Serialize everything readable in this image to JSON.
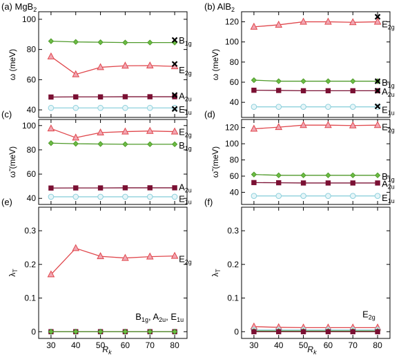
{
  "figure": {
    "x_label": "R",
    "x_label_sub": "k"
  },
  "chart_data": [
    {
      "panel_label": "(a) MgB",
      "panel_label_sub": "2",
      "type": "line",
      "x": [
        30,
        40,
        50,
        60,
        70,
        80
      ],
      "ylim": [
        35,
        105
      ],
      "yticks": [
        40,
        60,
        80,
        100
      ],
      "ylabel": "ω (meV)",
      "series": [
        {
          "name": "B1g",
          "color": "#4f9a2a",
          "fill": "#6cbd45",
          "marker": "diamond",
          "values": [
            85.5,
            85.0,
            84.8,
            84.6,
            84.6,
            84.6
          ],
          "ref": 86.3
        },
        {
          "name": "E2g",
          "color": "#e0474c",
          "fill": "#f1a6b3",
          "marker": "triangle",
          "values": [
            75.3,
            63.5,
            68.2,
            69.2,
            69.3,
            68.8
          ],
          "ref": 70.4
        },
        {
          "name": "A2u",
          "color": "#7a1033",
          "fill": "#7a1033",
          "marker": "square",
          "values": [
            48.5,
            48.6,
            48.6,
            48.7,
            48.7,
            48.7
          ],
          "ref": 49.8
        },
        {
          "name": "E1u",
          "color": "#8ed0dc",
          "fill": "#e6f5f8",
          "marker": "circle",
          "values": [
            41.3,
            41.3,
            41.3,
            41.3,
            41.3,
            41.3
          ],
          "ref": 40.6
        }
      ],
      "labels": [
        {
          "main": "B",
          "sub": "1g",
          "y": 86.3
        },
        {
          "main": "E",
          "sub": "2g",
          "y": 66.5
        },
        {
          "main": "A",
          "sub": "2u",
          "y": 49.3
        },
        {
          "main": "E",
          "sub": "1u",
          "y": 40.5
        }
      ]
    },
    {
      "panel_label": "(b) AlB",
      "panel_label_sub": "2",
      "type": "line",
      "x": [
        30,
        40,
        50,
        60,
        70,
        80
      ],
      "ylim": [
        25,
        130
      ],
      "yticks": [
        40,
        60,
        80,
        100,
        120
      ],
      "ylabel": "ω (meV)",
      "series": [
        {
          "name": "E2g",
          "color": "#e0474c",
          "fill": "#f1a6b3",
          "marker": "triangle",
          "values": [
            115.0,
            117.0,
            120.0,
            120.0,
            119.5,
            120.0
          ],
          "ref": 125.0
        },
        {
          "name": "B1g",
          "color": "#4f9a2a",
          "fill": "#6cbd45",
          "marker": "diamond",
          "values": [
            62.0,
            61.0,
            61.0,
            61.0,
            61.0,
            61.0
          ],
          "ref": 61.0
        },
        {
          "name": "A2u",
          "color": "#7a1033",
          "fill": "#7a1033",
          "marker": "square",
          "values": [
            52.0,
            51.8,
            51.5,
            51.5,
            51.5,
            51.5
          ],
          "ref": 51.5
        },
        {
          "name": "E1u",
          "color": "#8ed0dc",
          "fill": "#e6f5f8",
          "marker": "circle",
          "values": [
            35.5,
            35.5,
            35.5,
            35.5,
            35.5,
            35.5
          ],
          "ref": 36.0
        }
      ],
      "labels": [
        {
          "main": "E",
          "sub": "2g",
          "y": 118.0
        },
        {
          "main": "B",
          "sub": "1g",
          "y": 60.0
        },
        {
          "main": "A",
          "sub": "2u",
          "y": 51.0
        },
        {
          "main": "E",
          "sub": "1u",
          "y": 33.0
        }
      ]
    },
    {
      "panel_label": "(c)",
      "type": "line",
      "x": [
        30,
        40,
        50,
        60,
        70,
        80
      ],
      "ylim": [
        35,
        105
      ],
      "yticks": [
        40,
        60,
        80,
        100
      ],
      "ylabel": "ω̃ (meV)",
      "series": [
        {
          "name": "E2g",
          "color": "#e0474c",
          "fill": "#f1a6b3",
          "marker": "triangle",
          "values": [
            97.5,
            90.0,
            94.2,
            95.0,
            95.5,
            95.0
          ]
        },
        {
          "name": "B1g",
          "color": "#4f9a2a",
          "fill": "#6cbd45",
          "marker": "diamond",
          "values": [
            85.5,
            85.0,
            84.8,
            84.6,
            84.6,
            84.6
          ]
        },
        {
          "name": "A2u",
          "color": "#7a1033",
          "fill": "#7a1033",
          "marker": "square",
          "values": [
            48.5,
            48.6,
            48.6,
            48.7,
            48.7,
            48.7
          ]
        },
        {
          "name": "E1u",
          "color": "#8ed0dc",
          "fill": "#e6f5f8",
          "marker": "circle",
          "values": [
            41.3,
            41.3,
            41.3,
            41.3,
            41.3,
            41.3
          ]
        }
      ],
      "labels": [
        {
          "main": "E",
          "sub": "2g",
          "y": 95.0
        },
        {
          "main": "B",
          "sub": "1g",
          "y": 84.0
        },
        {
          "main": "A",
          "sub": "2u",
          "y": 49.5
        },
        {
          "main": "E",
          "sub": "1u",
          "y": 39.8
        }
      ]
    },
    {
      "panel_label": "(d)",
      "type": "line",
      "x": [
        30,
        40,
        50,
        60,
        70,
        80
      ],
      "ylim": [
        25,
        130
      ],
      "yticks": [
        40,
        60,
        80,
        100,
        120
      ],
      "ylabel": "ω̃ (meV)",
      "series": [
        {
          "name": "E2g",
          "color": "#e0474c",
          "fill": "#f1a6b3",
          "marker": "triangle",
          "values": [
            118.5,
            120.5,
            123.0,
            123.0,
            122.5,
            123.0
          ]
        },
        {
          "name": "B1g",
          "color": "#4f9a2a",
          "fill": "#6cbd45",
          "marker": "diamond",
          "values": [
            62.0,
            61.0,
            61.0,
            61.0,
            61.0,
            61.0
          ]
        },
        {
          "name": "A2u",
          "color": "#7a1033",
          "fill": "#7a1033",
          "marker": "square",
          "values": [
            52.0,
            51.8,
            51.5,
            51.5,
            51.5,
            51.5
          ]
        },
        {
          "name": "E1u",
          "color": "#8ed0dc",
          "fill": "#e6f5f8",
          "marker": "circle",
          "values": [
            35.5,
            35.5,
            35.5,
            35.5,
            35.5,
            35.5
          ]
        }
      ],
      "labels": [
        {
          "main": "E",
          "sub": "2g",
          "y": 121.0
        },
        {
          "main": "B",
          "sub": "1g",
          "y": 60.0
        },
        {
          "main": "A",
          "sub": "2u",
          "y": 51.0
        },
        {
          "main": "E",
          "sub": "1u",
          "y": 33.5
        }
      ]
    },
    {
      "panel_label": "(e)",
      "type": "line",
      "x": [
        30,
        40,
        50,
        60,
        70,
        80
      ],
      "ylim": [
        -0.02,
        0.37
      ],
      "yticks": [
        0.0,
        0.1,
        0.2,
        0.3
      ],
      "yticklabels": [
        "0",
        "0.1",
        "0.2",
        "0.3"
      ],
      "ylabel": "λ",
      "ylabel_sub": "T",
      "series": [
        {
          "name": "E2g",
          "color": "#e0474c",
          "fill": "#f1a6b3",
          "marker": "triangle",
          "values": [
            0.17,
            0.248,
            0.224,
            0.219,
            0.223,
            0.225
          ]
        },
        {
          "name": "E1u",
          "color": "#8ed0dc",
          "fill": "#e6f5f8",
          "marker": "circle",
          "values": [
            0.0,
            0.0,
            0.0,
            0.0,
            0.0,
            0.0
          ]
        },
        {
          "name": "A2u",
          "color": "#7a1033",
          "fill": "#7a1033",
          "marker": "square",
          "values": [
            0.0,
            0.0,
            0.0,
            0.0,
            0.0,
            0.0
          ]
        },
        {
          "name": "B1g",
          "color": "#4f9a2a",
          "fill": "#6cbd45",
          "marker": "diamond",
          "values": [
            0.0,
            0.0,
            0.0,
            0.0,
            0.0,
            0.0
          ]
        }
      ],
      "labels": [
        {
          "main": "E",
          "sub": "2g",
          "y": 0.217
        }
      ],
      "label_line": {
        "y": 0.035,
        "parts": [
          {
            "main": "B",
            "sub": "1g",
            "suffix": ", "
          },
          {
            "main": "A",
            "sub": "2u",
            "suffix": ", "
          },
          {
            "main": "E",
            "sub": "1u",
            "suffix": ""
          }
        ]
      }
    },
    {
      "panel_label": "(f)",
      "type": "line",
      "x": [
        30,
        40,
        50,
        60,
        70,
        80
      ],
      "ylim": [
        -0.02,
        0.37
      ],
      "yticks": [
        0.0,
        0.1,
        0.2,
        0.3
      ],
      "yticklabels": [
        "0",
        "0.1",
        "0.2",
        "0.3"
      ],
      "ylabel": "λ",
      "ylabel_sub": "T",
      "series": [
        {
          "name": "E2g",
          "color": "#e0474c",
          "fill": "#f1a6b3",
          "marker": "triangle",
          "values": [
            0.015,
            0.013,
            0.012,
            0.012,
            0.012,
            0.012
          ]
        },
        {
          "name": "E1u",
          "color": "#8ed0dc",
          "fill": "#e6f5f8",
          "marker": "circle",
          "values": [
            0.005,
            0.005,
            0.005,
            0.005,
            0.005,
            0.005
          ]
        },
        {
          "name": "B1g",
          "color": "#4f9a2a",
          "fill": "#6cbd45",
          "marker": "diamond",
          "values": [
            0.002,
            0.002,
            0.002,
            0.002,
            0.002,
            0.002
          ]
        },
        {
          "name": "A2u",
          "color": "#7a1033",
          "fill": "#7a1033",
          "marker": "square",
          "values": [
            0.0,
            0.0,
            0.0,
            0.0,
            0.0,
            0.0
          ]
        }
      ],
      "labels": [
        {
          "main": "E",
          "sub": "2g",
          "y": 0.03,
          "at": "top"
        }
      ]
    }
  ]
}
